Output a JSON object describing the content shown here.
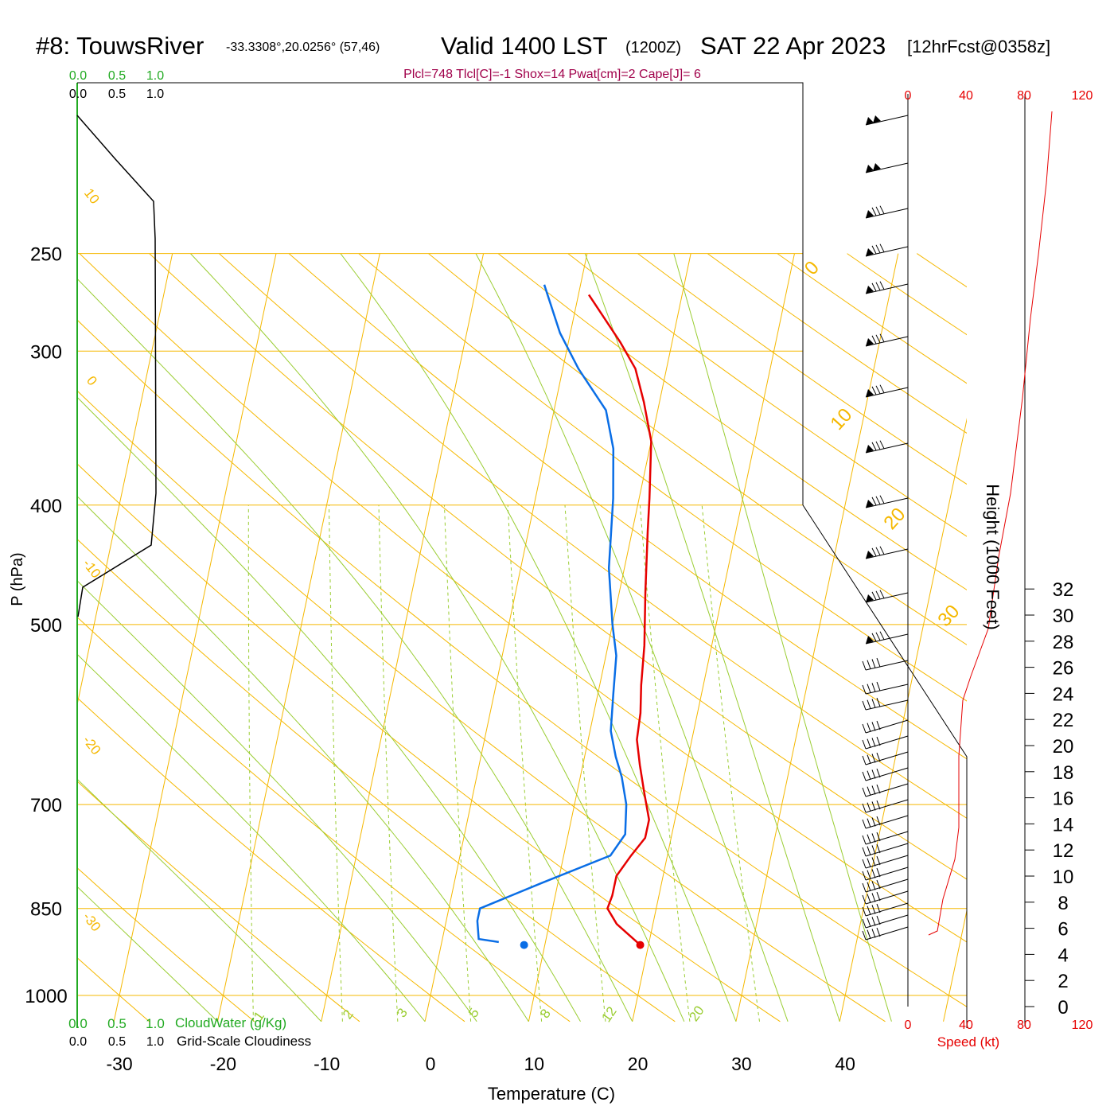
{
  "header": {
    "station": "#8: TouwsRiver",
    "coords": "-33.3308°,20.0256° (57,46)",
    "valid": "Valid 1400 LST",
    "zulu": "(1200Z)",
    "date": "SAT 22 Apr 2023",
    "forecast": "[12hrFcst@0358z]",
    "indices": "Plcl=748 Tlcl[C]=-1 Shox=14 Pwat[cm]=2 Cape[J]= 6"
  },
  "labels": {
    "x_axis": "Temperature (C)",
    "y_axis": "P (hPa)",
    "height_axis": "Height (1000 Feet)",
    "speed_axis": "Speed (kt)",
    "cloudwater": "CloudWater (g/Kg)",
    "cloudiness": "Grid-Scale Cloudiness"
  },
  "colors": {
    "isobar": "#f5b800",
    "isotherm": "#f5b800",
    "dry_adiabat": "#f5b800",
    "moist_adiabat": "#9acd32",
    "mixing_ratio": "#9acd32",
    "temperature": "#e60000",
    "dewpoint": "#0a6ee6",
    "cloud_green": "#22aa22",
    "speed": "#e60000",
    "indices": "#a0004a"
  },
  "chart_data": {
    "type": "line",
    "title": "#8: TouwsRiver -33.3308°,20.0256° (57,46) Valid 1400 LST (1200Z) SAT 22 Apr 2023 [12hrFcst@0358z]",
    "xlabel": "Temperature (C)",
    "ylabel": "P (hPa)",
    "xlim": [
      -35,
      47
    ],
    "ylim": [
      1050,
      250
    ],
    "y_scale": "log",
    "x_ticks": [
      -30,
      -20,
      -10,
      0,
      10,
      20,
      30,
      40
    ],
    "pressure_ticks": [
      250,
      300,
      400,
      500,
      700,
      850,
      1000
    ],
    "isotherm_labels": [
      "10",
      "0",
      "-10",
      "-20",
      "-30"
    ],
    "right_isotherm_labels": [
      "0",
      "10",
      "20",
      "30"
    ],
    "mixing_ratio_labels": [
      "1",
      "2",
      "3",
      "5",
      "8",
      "12",
      "20"
    ],
    "series": [
      {
        "name": "Temperature",
        "points": [
          [
            1,
            270
          ],
          [
            5,
            295
          ],
          [
            7,
            310
          ],
          [
            8.5,
            330
          ],
          [
            10,
            355
          ],
          [
            11,
            395
          ],
          [
            11.5,
            420
          ],
          [
            12.5,
            470
          ],
          [
            13.5,
            520
          ],
          [
            14,
            560
          ],
          [
            14.5,
            590
          ],
          [
            14.7,
            620
          ],
          [
            15.5,
            650
          ],
          [
            16.5,
            685
          ],
          [
            17.5,
            720
          ],
          [
            17.5,
            745
          ],
          [
            16.5,
            770
          ],
          [
            15.5,
            800
          ],
          [
            15.5,
            830
          ],
          [
            15.3,
            850
          ],
          [
            16.5,
            875
          ],
          [
            19.2,
            910
          ]
        ]
      },
      {
        "name": "Dewpoint",
        "points": [
          [
            -3.5,
            265
          ],
          [
            -1,
            290
          ],
          [
            1.5,
            310
          ],
          [
            5,
            335
          ],
          [
            6.5,
            360
          ],
          [
            7.5,
            395
          ],
          [
            8.5,
            450
          ],
          [
            10,
            500
          ],
          [
            11,
            530
          ],
          [
            11.5,
            570
          ],
          [
            12,
            610
          ],
          [
            13,
            640
          ],
          [
            14,
            665
          ],
          [
            15,
            700
          ],
          [
            15.5,
            740
          ],
          [
            14.5,
            770
          ],
          [
            8.5,
            810
          ],
          [
            3,
            850
          ],
          [
            3,
            870
          ],
          [
            3.5,
            900
          ],
          [
            5.5,
            905
          ]
        ]
      }
    ],
    "surface_markers": [
      {
        "name": "Surface T",
        "temp": 19.2,
        "pressure": 910
      },
      {
        "name": "Surface Td",
        "temp": 8,
        "pressure": 910
      }
    ],
    "cloud_ticks": [
      "0.0",
      "0.5",
      "1.0"
    ],
    "speed_ticks": [
      "0",
      "40",
      "80",
      "120"
    ],
    "height_ticks": [
      "0",
      "2",
      "4",
      "6",
      "8",
      "10",
      "12",
      "14",
      "16",
      "18",
      "20",
      "22",
      "24",
      "26",
      "28",
      "30",
      "32"
    ],
    "grid": true
  }
}
